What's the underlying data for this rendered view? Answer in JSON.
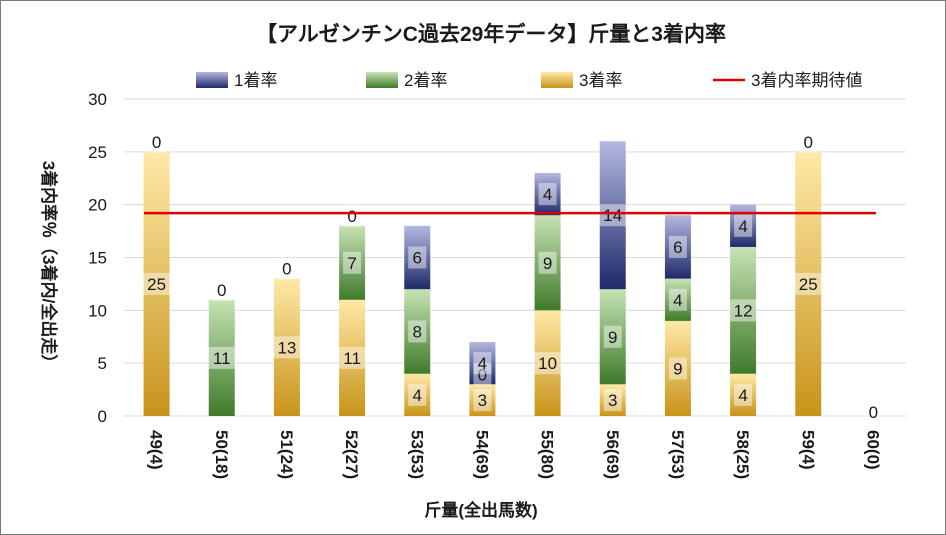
{
  "chart_data": {
    "type": "bar",
    "stacked": true,
    "title": "【アルゼンチンC過去29年データ】斤量と3着内率",
    "xlabel": "斤量(全出馬数)",
    "ylabel": "3着内率％（3着内/全出走）",
    "ylim": [
      0,
      30
    ],
    "yticks": [
      0,
      5,
      10,
      15,
      20,
      25,
      30
    ],
    "legend_position": "top",
    "categories": [
      "49(4)",
      "50(18)",
      "51(24)",
      "52(27)",
      "53(53)",
      "54(69)",
      "55(80)",
      "56(69)",
      "57(53)",
      "58(25)",
      "59(4)",
      "60(0)"
    ],
    "series": [
      {
        "name": "3着率",
        "type": "stacked-bar",
        "values": [
          25,
          0,
          13,
          11,
          4,
          3,
          10,
          3,
          9,
          4,
          25,
          0
        ],
        "labels": [
          "25",
          "",
          "13",
          "11",
          "4",
          "3",
          "10",
          "3",
          "9",
          "4",
          "25",
          "0"
        ],
        "color_top": "#ffe9a6",
        "color_bottom": "#c8931a"
      },
      {
        "name": "2着率",
        "type": "stacked-bar",
        "values": [
          0,
          11,
          0,
          7,
          8,
          0,
          9,
          9,
          4,
          12,
          0,
          0
        ],
        "labels": [
          "",
          "11",
          "",
          "7",
          "8",
          "0",
          "9",
          "9",
          "4",
          "12",
          "",
          ""
        ],
        "color_top": "#c6e3b4",
        "color_bottom": "#3f7a2a"
      },
      {
        "name": "1着率",
        "type": "stacked-bar",
        "values": [
          0,
          0,
          0,
          0,
          6,
          4,
          4,
          14,
          6,
          4,
          0,
          0
        ],
        "labels": [
          "0",
          "0",
          "0",
          "0",
          "6",
          "4",
          "4",
          "14",
          "6",
          "4",
          "0",
          ""
        ],
        "color_top": "#b4b8e0",
        "color_bottom": "#1f2a6b"
      },
      {
        "name": "3着内率期待値",
        "type": "line",
        "value": 19.2,
        "color": "#e00000"
      }
    ]
  }
}
